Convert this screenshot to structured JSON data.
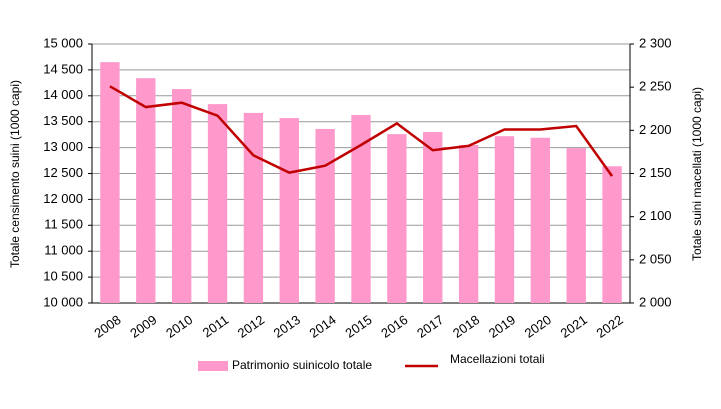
{
  "chart_data": {
    "type": "bar",
    "y_label": "Totale censimento suini (1000 capi)",
    "y2_label": "Totale suini macellati (1000 capi)",
    "categories": [
      "2008",
      "2009",
      "2010",
      "2011",
      "2012",
      "2013",
      "2014",
      "2015",
      "2016",
      "2017",
      "2018",
      "2019",
      "2020",
      "2021",
      "2022"
    ],
    "series": [
      {
        "name": "Patrimonio suinicolo totale",
        "type": "bar",
        "color": "#ff99cc",
        "values": [
          14650,
          14340,
          14130,
          13840,
          13670,
          13570,
          13360,
          13630,
          13260,
          13300,
          13050,
          13220,
          13190,
          12990,
          12640
        ]
      },
      {
        "name": "Macellazioni totali",
        "type": "line",
        "axis": "y2",
        "color": "#c00000",
        "values": [
          2251,
          2227,
          2232,
          2217,
          2171,
          2151,
          2159,
          2183,
          2208,
          2177,
          2182,
          2201,
          2201,
          2205,
          2147
        ]
      }
    ],
    "ylim": [
      10000,
      15000
    ],
    "yticks": [
      {
        "value": 10000,
        "label": "10 000"
      },
      {
        "value": 10500,
        "label": "10 500"
      },
      {
        "value": 11000,
        "label": "11 000"
      },
      {
        "value": 11500,
        "label": "11 500"
      },
      {
        "value": 12000,
        "label": "12 000"
      },
      {
        "value": 12500,
        "label": "12 500"
      },
      {
        "value": 13000,
        "label": "13 000"
      },
      {
        "value": 13500,
        "label": "13 500"
      },
      {
        "value": 14000,
        "label": "14 000"
      },
      {
        "value": 14500,
        "label": "14 500"
      },
      {
        "value": 15000,
        "label": "15 000"
      }
    ],
    "y2lim": [
      2000,
      2300
    ],
    "y2ticks": [
      {
        "value": 2000,
        "label": "2 000"
      },
      {
        "value": 2050,
        "label": "2 050"
      },
      {
        "value": 2100,
        "label": "2 100"
      },
      {
        "value": 2150,
        "label": "2 150"
      },
      {
        "value": 2200,
        "label": "2 200"
      },
      {
        "value": 2250,
        "label": "2 250"
      },
      {
        "value": 2300,
        "label": "2 300"
      }
    ],
    "grid": true
  }
}
